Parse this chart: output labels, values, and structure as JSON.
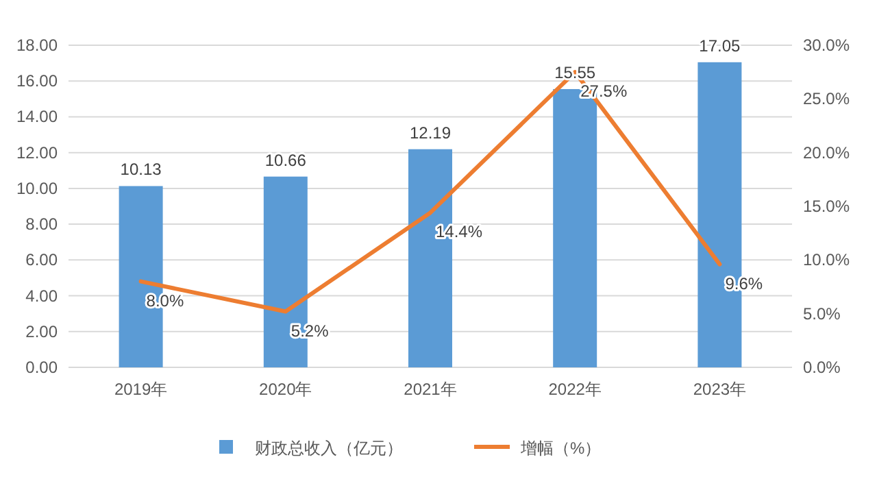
{
  "chart_data": {
    "type": "bar",
    "categories": [
      "2019年",
      "2020年",
      "2021年",
      "2022年",
      "2023年"
    ],
    "series": [
      {
        "name": "财政总收入（亿元）",
        "color": "#5b9bd5",
        "values": [
          10.13,
          10.66,
          12.19,
          15.55,
          17.05
        ],
        "value_labels": [
          "10.13",
          "10.66",
          "12.19",
          "15.55",
          "17.05"
        ]
      },
      {
        "name": "增幅（%）",
        "type": "line",
        "axis": "y2",
        "color": "#ed7d31",
        "values": [
          8.0,
          5.2,
          14.4,
          27.5,
          9.6
        ],
        "value_labels": [
          "8.0%",
          "5.2%",
          "14.4%",
          "27.5%",
          "9.6%"
        ]
      }
    ],
    "ylim": [
      0,
      18
    ],
    "yticks": [
      {
        "value": 0,
        "label": "0.00"
      },
      {
        "value": 2,
        "label": "2.00"
      },
      {
        "value": 4,
        "label": "4.00"
      },
      {
        "value": 6,
        "label": "6.00"
      },
      {
        "value": 8,
        "label": "8.00"
      },
      {
        "value": 10,
        "label": "10.00"
      },
      {
        "value": 12,
        "label": "12.00"
      },
      {
        "value": 14,
        "label": "14.00"
      },
      {
        "value": 16,
        "label": "16.00"
      },
      {
        "value": 18,
        "label": "18.00"
      }
    ],
    "y2lim": [
      0,
      30
    ],
    "y2ticks": [
      {
        "value": 0,
        "label": "0.0%"
      },
      {
        "value": 5,
        "label": "5.0%"
      },
      {
        "value": 10,
        "label": "10.0%"
      },
      {
        "value": 15,
        "label": "15.0%"
      },
      {
        "value": 20,
        "label": "20.0%"
      },
      {
        "value": 25,
        "label": "25.0%"
      },
      {
        "value": 30,
        "label": "30.0%"
      }
    ],
    "grid": "y",
    "legend": "bottom",
    "marker": "none",
    "line_style": "solid"
  }
}
